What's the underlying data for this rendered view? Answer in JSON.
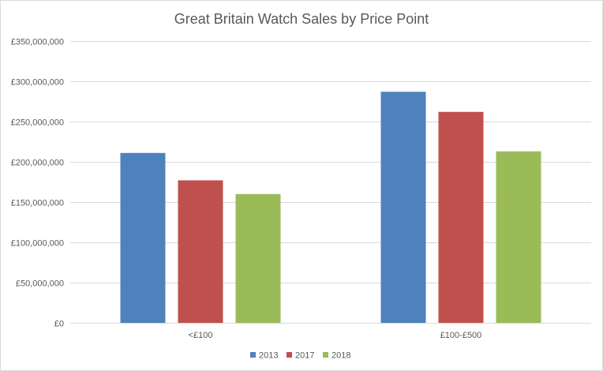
{
  "chart_data": {
    "type": "bar",
    "title": "Great Britain Watch Sales by Price Point",
    "xlabel": "",
    "ylabel": "",
    "categories": [
      "<£100",
      "£100-£500"
    ],
    "series": [
      {
        "name": "2013",
        "color": "#4f81bd",
        "values": [
          211000000,
          287000000
        ]
      },
      {
        "name": "2017",
        "color": "#c0504d",
        "values": [
          177000000,
          262000000
        ]
      },
      {
        "name": "2018",
        "color": "#9bbb59",
        "values": [
          160000000,
          213000000
        ]
      }
    ],
    "ylim": [
      0,
      350000000
    ],
    "yticks": [
      0,
      50000000,
      100000000,
      150000000,
      200000000,
      250000000,
      300000000,
      350000000
    ],
    "ytick_labels": [
      "£0",
      "£50,000,000",
      "£100,000,000",
      "£150,000,000",
      "£200,000,000",
      "£250,000,000",
      "£300,000,000",
      "£350,000,000"
    ],
    "grid": true,
    "legend_position": "bottom"
  }
}
